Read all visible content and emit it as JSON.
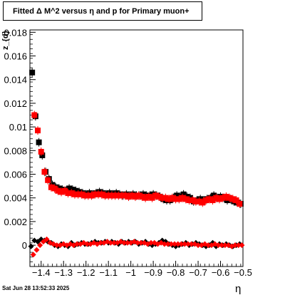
{
  "title": "Fitted Δ M^2 versus η and p for Primary muon+",
  "footer": "Sat Jun 28 13:52:33 2025",
  "chart_data": {
    "type": "scatter",
    "xlabel": "η",
    "ylabel": "z_{d}",
    "xlim": [
      -1.45,
      -0.5
    ],
    "ylim": [
      -0.0018,
      0.0182
    ],
    "grid": true,
    "x_ticks": [
      -1.4,
      -1.3,
      -1.2,
      -1.1,
      -1,
      -0.9,
      -0.8,
      -0.7,
      -0.6,
      -0.5
    ],
    "x_tick_labels": [
      "−1.4",
      "−1.3",
      "−1.2",
      "−1.1",
      "−1",
      "−0.9",
      "−0.8",
      "−0.7",
      "−0.6",
      "−0.5"
    ],
    "y_ticks": [
      0,
      0.002,
      0.004,
      0.006,
      0.008,
      0.01,
      0.012,
      0.014,
      0.016,
      0.018
    ],
    "y_tick_labels": [
      "0",
      "0.002",
      "0.004",
      "0.006",
      "0.008",
      "0.01",
      "0.012",
      "0.014",
      "0.016",
      "0.018"
    ],
    "series": [
      {
        "color": "#000000",
        "marker": "square",
        "x": [
          -1.44,
          -1.425,
          -1.41,
          -1.395,
          -1.38,
          -1.365,
          -1.35,
          -1.335,
          -1.32,
          -1.305,
          -1.29,
          -1.275,
          -1.26,
          -1.245,
          -1.23,
          -1.215,
          -1.2,
          -1.185,
          -1.17,
          -1.155,
          -1.14,
          -1.125,
          -1.11,
          -1.095,
          -1.08,
          -1.065,
          -1.05,
          -1.035,
          -1.02,
          -1.005,
          -0.99,
          -0.975,
          -0.96,
          -0.945,
          -0.93,
          -0.915,
          -0.9,
          -0.885,
          -0.87,
          -0.855,
          -0.84,
          -0.825,
          -0.81,
          -0.795,
          -0.78,
          -0.765,
          -0.75,
          -0.735,
          -0.72,
          -0.705,
          -0.69,
          -0.675,
          -0.66,
          -0.645,
          -0.63,
          -0.615,
          -0.6,
          -0.585,
          -0.57,
          -0.555,
          -0.54,
          -0.525,
          -0.51
        ],
        "values": [
          0.0146,
          0.0109,
          0.0087,
          0.0076,
          0.0062,
          0.0056,
          0.0051,
          0.0049,
          0.0048,
          0.0047,
          0.0046,
          0.0048,
          0.0047,
          0.0046,
          0.0045,
          0.0044,
          0.0043,
          0.0044,
          0.0043,
          0.0044,
          0.0045,
          0.0044,
          0.0043,
          0.0044,
          0.0043,
          0.0044,
          0.0043,
          0.0042,
          0.0043,
          0.0042,
          0.0043,
          0.0042,
          0.0042,
          0.0043,
          0.0042,
          0.0042,
          0.0043,
          0.0042,
          0.0041,
          0.0039,
          0.0038,
          0.0038,
          0.004,
          0.0042,
          0.0041,
          0.0043,
          0.0041,
          0.004,
          0.0037,
          0.0038,
          0.0039,
          0.0038,
          0.0039,
          0.004,
          0.0042,
          0.004,
          0.0041,
          0.004,
          0.0038,
          0.0039,
          0.0037,
          0.0036,
          0.0035
        ]
      },
      {
        "color": "#ff0000",
        "marker": "square",
        "x": [
          -1.43,
          -1.415,
          -1.4,
          -1.385,
          -1.37,
          -1.355,
          -1.34,
          -1.325,
          -1.31,
          -1.295,
          -1.28,
          -1.265,
          -1.25,
          -1.235,
          -1.22,
          -1.205,
          -1.19,
          -1.175,
          -1.16,
          -1.145,
          -1.13,
          -1.115,
          -1.1,
          -1.085,
          -1.07,
          -1.055,
          -1.04,
          -1.025,
          -1.01,
          -0.995,
          -0.98,
          -0.965,
          -0.95,
          -0.935,
          -0.92,
          -0.905,
          -0.89,
          -0.875,
          -0.86,
          -0.845,
          -0.83,
          -0.815,
          -0.8,
          -0.785,
          -0.77,
          -0.755,
          -0.74,
          -0.725,
          -0.71,
          -0.695,
          -0.68,
          -0.665,
          -0.65,
          -0.635,
          -0.62,
          -0.605,
          -0.59,
          -0.575,
          -0.56,
          -0.545,
          -0.53,
          -0.515
        ],
        "values": [
          0.011,
          0.0097,
          0.0079,
          0.0062,
          0.0055,
          0.0049,
          0.0048,
          0.0046,
          0.0045,
          0.0046,
          0.0044,
          0.0044,
          0.0043,
          0.0043,
          0.0043,
          0.0042,
          0.0042,
          0.0042,
          0.0043,
          0.0043,
          0.0043,
          0.0042,
          0.0042,
          0.0042,
          0.0042,
          0.0042,
          0.0042,
          0.0042,
          0.0041,
          0.0042,
          0.0041,
          0.0042,
          0.0041,
          0.004,
          0.0041,
          0.004,
          0.0042,
          0.0041,
          0.004,
          0.004,
          0.0039,
          0.004,
          0.0039,
          0.0039,
          0.004,
          0.0039,
          0.0038,
          0.0038,
          0.0037,
          0.0037,
          0.0036,
          0.0038,
          0.0039,
          0.0038,
          0.004,
          0.0039,
          0.004,
          0.0041,
          0.004,
          0.0039,
          0.0038,
          0.0035
        ]
      },
      {
        "color": "#000000",
        "marker": "diamond",
        "x": [
          -1.445,
          -1.43,
          -1.415,
          -1.4,
          -1.385,
          -1.37,
          -1.355,
          -1.34,
          -1.325,
          -1.31,
          -1.295,
          -1.28,
          -1.265,
          -1.25,
          -1.235,
          -1.22,
          -1.205,
          -1.19,
          -1.175,
          -1.16,
          -1.145,
          -1.13,
          -1.115,
          -1.1,
          -1.085,
          -1.07,
          -1.055,
          -1.04,
          -1.025,
          -1.01,
          -0.995,
          -0.98,
          -0.965,
          -0.95,
          -0.935,
          -0.92,
          -0.905,
          -0.89,
          -0.875,
          -0.86,
          -0.845,
          -0.83,
          -0.815,
          -0.8,
          -0.785,
          -0.77,
          -0.755,
          -0.74,
          -0.725,
          -0.71,
          -0.695,
          -0.68,
          -0.665,
          -0.65,
          -0.635,
          -0.62,
          -0.605,
          -0.59,
          -0.575,
          -0.56,
          -0.545,
          -0.53,
          -0.515
        ],
        "values": [
          -0.0001,
          0.0004,
          0.0003,
          0.0005,
          0.0004,
          0.0003,
          0.0002,
          0.0,
          -0.0001,
          0.0001,
          0.0,
          -0.0001,
          0.0002,
          0.0,
          0.0001,
          0.0002,
          0.0001,
          0.0001,
          0.0002,
          0.0003,
          0.0002,
          0.0002,
          0.0003,
          0.0002,
          0.0003,
          0.0002,
          0.0001,
          0.0003,
          0.0002,
          0.0003,
          0.0002,
          0.0003,
          0.0001,
          0.0002,
          0.0003,
          0.0001,
          0.0,
          0.0001,
          0.0002,
          0.0004,
          0.0003,
          0.0001,
          0.0,
          -0.0001,
          0.0,
          0.0001,
          0.0002,
          0.0,
          0.0001,
          0.0002,
          0.0001,
          0.0,
          -0.0001,
          0.0,
          0.0002,
          -0.0001,
          0.0001,
          0.0,
          0.0001,
          0.0,
          -0.0001,
          0.0,
          0.0001
        ]
      },
      {
        "color": "#ff0000",
        "marker": "diamond",
        "x": [
          -1.435,
          -1.42,
          -1.405,
          -1.39,
          -1.375,
          -1.36,
          -1.345,
          -1.33,
          -1.315,
          -1.3,
          -1.285,
          -1.27,
          -1.255,
          -1.24,
          -1.225,
          -1.21,
          -1.195,
          -1.18,
          -1.165,
          -1.15,
          -1.135,
          -1.12,
          -1.105,
          -1.09,
          -1.075,
          -1.06,
          -1.045,
          -1.03,
          -1.015,
          -1.0,
          -0.985,
          -0.97,
          -0.955,
          -0.94,
          -0.925,
          -0.91,
          -0.895,
          -0.88,
          -0.865,
          -0.85,
          -0.835,
          -0.82,
          -0.805,
          -0.79,
          -0.775,
          -0.76,
          -0.745,
          -0.73,
          -0.715,
          -0.7,
          -0.685,
          -0.67,
          -0.655,
          -0.64,
          -0.625,
          -0.61,
          -0.595,
          -0.58,
          -0.565,
          -0.55,
          -0.535,
          -0.52,
          -0.505
        ],
        "values": [
          -0.0008,
          -0.0004,
          0.0,
          0.0003,
          0.0005,
          0.0002,
          0.0001,
          0.0,
          0.0,
          0.0001,
          0.0,
          0.0001,
          0.0,
          0.0001,
          0.0001,
          0.0002,
          0.0001,
          0.0001,
          0.0002,
          0.0001,
          0.0002,
          0.0002,
          0.0003,
          0.0002,
          0.0002,
          0.0002,
          0.0003,
          0.0002,
          0.0002,
          0.0002,
          0.0003,
          0.0002,
          0.0002,
          0.0002,
          0.0001,
          0.0002,
          0.0002,
          0.0001,
          0.0002,
          0.0001,
          0.0001,
          0.0001,
          0.0001,
          0.0001,
          0.0001,
          0.0001,
          0.0001,
          0.0001,
          0.0001,
          0.0,
          0.0,
          0.0001,
          0.0,
          0.0,
          0.0001,
          0.0,
          0.0,
          0.0,
          0.0,
          -0.0001,
          0.0,
          0.0,
          0.0
        ]
      }
    ]
  }
}
